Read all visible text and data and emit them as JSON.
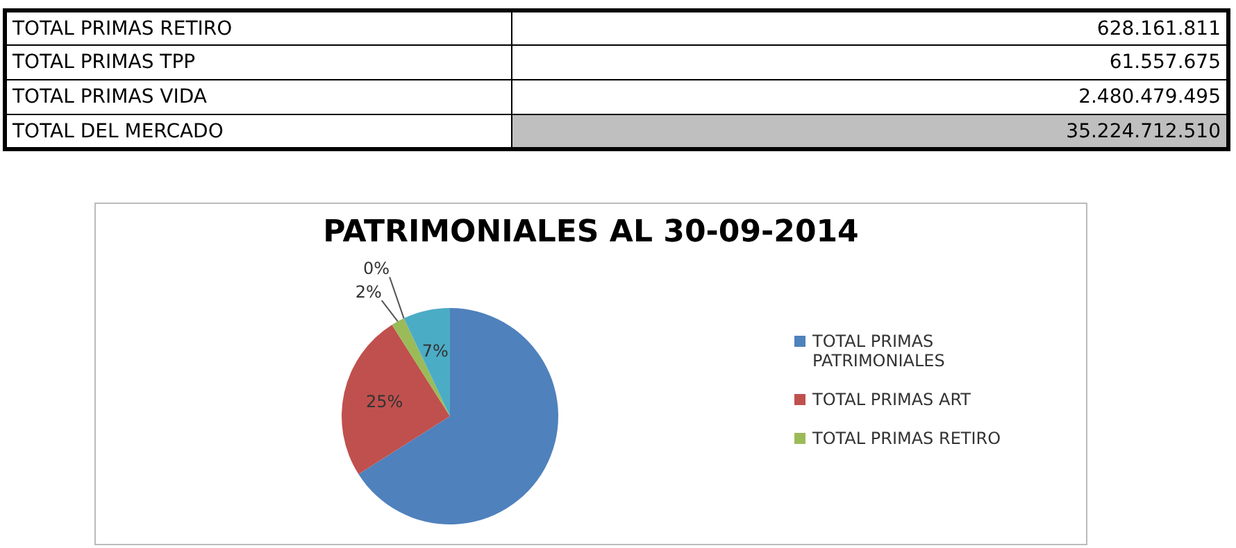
{
  "chart_data": {
    "type": "pie",
    "title": "PATRIMONIALES AL 30-09-2014",
    "categories": [
      "TOTAL PRIMAS PATRIMONIALES",
      "TOTAL PRIMAS ART",
      "TOTAL PRIMAS RETIRO",
      null,
      null
    ],
    "values": [
      66,
      25,
      2,
      0,
      7
    ],
    "colors": [
      "#4f81bd",
      "#c0504d",
      "#9bbb59",
      "#8064a2",
      "#4bacc6"
    ],
    "value_labels": [
      null,
      "25%",
      "2%",
      "0%",
      "7%"
    ],
    "legend": "right",
    "annotations": [
      "TOTAL PRIMAS RETIRO",
      "628.161.811",
      "TOTAL PRIMAS TPP",
      "61.557.675",
      "TOTAL PRIMAS VIDA",
      "2.480.479.495",
      "TOTAL DEL MERCADO",
      "35.224.712.510"
    ]
  }
}
